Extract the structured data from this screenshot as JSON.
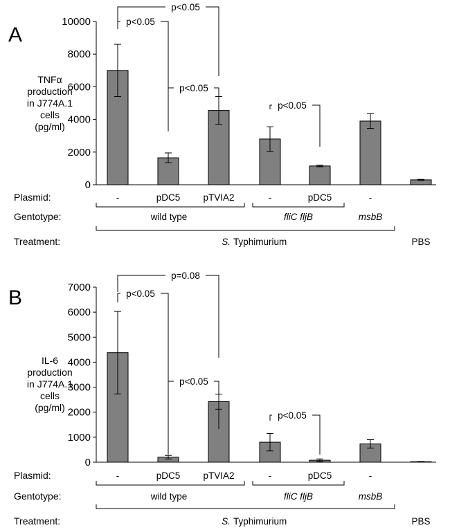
{
  "chart_data": [
    {
      "panel": "A",
      "type": "bar",
      "ylabel": [
        "TNFα",
        "production",
        "in J774A.1",
        "cells",
        "(pg/ml)"
      ],
      "ylim": [
        0,
        10000
      ],
      "yticks": [
        0,
        2000,
        4000,
        6000,
        8000,
        10000
      ],
      "bar_color": "#808080",
      "values": [
        7000,
        1650,
        4550,
        2800,
        1150,
        3900,
        300
      ],
      "errors": [
        1600,
        300,
        850,
        750,
        50,
        450,
        30
      ],
      "significance": [
        {
          "from": 0,
          "to": 2,
          "label": "p<0.05"
        },
        {
          "from": 0,
          "to": 1,
          "label": "p<0.05"
        },
        {
          "from": 1,
          "to": 2,
          "label": "p<0.05"
        },
        {
          "from": 3,
          "to": 4,
          "label": "p<0.05"
        }
      ]
    },
    {
      "panel": "B",
      "type": "bar",
      "ylabel": [
        "IL-6",
        "production",
        "in J774A.1",
        "cells",
        "(pg/ml)"
      ],
      "ylim": [
        0,
        7000
      ],
      "yticks": [
        0,
        1000,
        2000,
        3000,
        4000,
        5000,
        6000,
        7000
      ],
      "bar_color": "#808080",
      "values": [
        4380,
        200,
        2420,
        800,
        80,
        730,
        20
      ],
      "errors": [
        1650,
        70,
        300,
        350,
        50,
        170,
        10
      ],
      "significance": [
        {
          "from": 0,
          "to": 2,
          "label": "p=0.08"
        },
        {
          "from": 0,
          "to": 1,
          "label": "p<0.05"
        },
        {
          "from": 1,
          "to": 2,
          "label": "p<0.05"
        },
        {
          "from": 3,
          "to": 4,
          "label": "p<0.05"
        }
      ]
    }
  ],
  "rows": {
    "plasmid_label": "Plasmid:",
    "plasmids": [
      "-",
      "pDC5",
      "pTVIA2",
      "-",
      "pDC5",
      "-",
      ""
    ],
    "genotype_label": "Gentotype:",
    "genotypes": [
      {
        "label": "wild type",
        "italic": false
      },
      {
        "label": "fliC fljB",
        "italic": true
      },
      {
        "label": "msbB",
        "italic": true
      }
    ],
    "treatment_label": "Treatment:",
    "treatment_species_abbrev": "S.",
    "treatment_species": "Typhimurium",
    "treatment_control": "PBS"
  }
}
